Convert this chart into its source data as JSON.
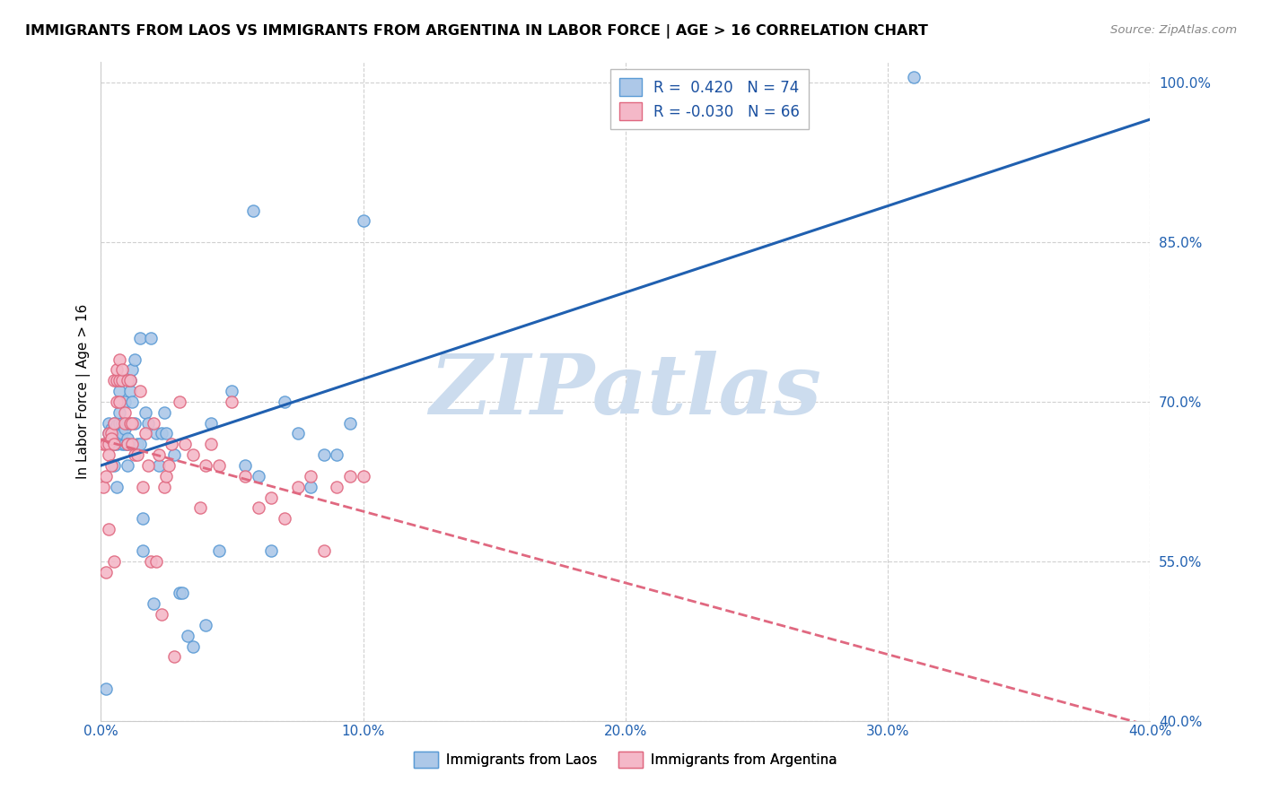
{
  "title": "IMMIGRANTS FROM LAOS VS IMMIGRANTS FROM ARGENTINA IN LABOR FORCE | AGE > 16 CORRELATION CHART",
  "source": "Source: ZipAtlas.com",
  "ylabel": "In Labor Force | Age > 16",
  "xlim": [
    0.0,
    40.0
  ],
  "ylim": [
    0.4,
    1.02
  ],
  "xtick_labels": [
    "0.0%",
    "10.0%",
    "20.0%",
    "30.0%",
    "40.0%"
  ],
  "xtick_vals": [
    0.0,
    10.0,
    20.0,
    30.0,
    40.0
  ],
  "ytick_labels": [
    "100.0%",
    "85.0%",
    "70.0%",
    "55.0%",
    "40.0%"
  ],
  "ytick_vals": [
    1.0,
    0.85,
    0.7,
    0.55,
    0.4
  ],
  "laos_color": "#adc8e8",
  "laos_edge_color": "#5b9bd5",
  "argentina_color": "#f4b8c8",
  "argentina_edge_color": "#e06880",
  "laos_R": 0.42,
  "laos_N": 74,
  "argentina_R": -0.03,
  "argentina_N": 66,
  "watermark": "ZIPatlas",
  "watermark_color": "#ccdcee",
  "trend_laos_color": "#2060b0",
  "trend_argentina_color": "#e06880",
  "laos_x": [
    0.2,
    0.3,
    0.3,
    0.3,
    0.4,
    0.4,
    0.4,
    0.4,
    0.5,
    0.5,
    0.5,
    0.5,
    0.6,
    0.6,
    0.6,
    0.6,
    0.6,
    0.7,
    0.7,
    0.7,
    0.7,
    0.7,
    0.8,
    0.8,
    0.8,
    0.8,
    0.9,
    0.9,
    0.9,
    1.0,
    1.0,
    1.0,
    1.0,
    1.1,
    1.1,
    1.2,
    1.2,
    1.3,
    1.3,
    1.4,
    1.5,
    1.5,
    1.6,
    1.6,
    1.7,
    1.8,
    1.9,
    2.0,
    2.1,
    2.2,
    2.3,
    2.4,
    2.5,
    2.8,
    3.0,
    3.1,
    3.3,
    3.5,
    4.0,
    4.2,
    4.5,
    5.0,
    5.5,
    5.8,
    6.0,
    6.5,
    7.0,
    7.5,
    8.0,
    8.5,
    9.0,
    9.5,
    10.0,
    31.0
  ],
  "laos_y": [
    0.43,
    0.67,
    0.68,
    0.66,
    0.665,
    0.672,
    0.66,
    0.675,
    0.68,
    0.675,
    0.66,
    0.64,
    0.665,
    0.67,
    0.678,
    0.66,
    0.62,
    0.67,
    0.665,
    0.68,
    0.69,
    0.71,
    0.72,
    0.68,
    0.66,
    0.67,
    0.675,
    0.7,
    0.66,
    0.68,
    0.665,
    0.66,
    0.64,
    0.71,
    0.72,
    0.7,
    0.73,
    0.68,
    0.74,
    0.66,
    0.76,
    0.66,
    0.59,
    0.56,
    0.69,
    0.68,
    0.76,
    0.51,
    0.67,
    0.64,
    0.67,
    0.69,
    0.67,
    0.65,
    0.52,
    0.52,
    0.48,
    0.47,
    0.49,
    0.68,
    0.56,
    0.71,
    0.64,
    0.88,
    0.63,
    0.56,
    0.7,
    0.67,
    0.62,
    0.65,
    0.65,
    0.68,
    0.87,
    1.005
  ],
  "argentina_x": [
    0.1,
    0.1,
    0.2,
    0.2,
    0.2,
    0.3,
    0.3,
    0.3,
    0.3,
    0.4,
    0.4,
    0.4,
    0.5,
    0.5,
    0.5,
    0.5,
    0.6,
    0.6,
    0.6,
    0.7,
    0.7,
    0.7,
    0.8,
    0.8,
    0.9,
    0.9,
    1.0,
    1.0,
    1.1,
    1.1,
    1.2,
    1.2,
    1.3,
    1.4,
    1.5,
    1.6,
    1.7,
    1.8,
    1.9,
    2.0,
    2.1,
    2.2,
    2.3,
    2.4,
    2.5,
    2.6,
    2.7,
    2.8,
    3.0,
    3.2,
    3.5,
    3.8,
    4.0,
    4.2,
    4.5,
    5.0,
    5.5,
    6.0,
    6.5,
    7.0,
    7.5,
    8.0,
    8.5,
    9.0,
    9.5,
    10.0
  ],
  "argentina_y": [
    0.66,
    0.62,
    0.66,
    0.63,
    0.54,
    0.67,
    0.66,
    0.65,
    0.58,
    0.67,
    0.665,
    0.64,
    0.68,
    0.72,
    0.66,
    0.55,
    0.72,
    0.73,
    0.7,
    0.72,
    0.74,
    0.7,
    0.72,
    0.73,
    0.69,
    0.68,
    0.72,
    0.66,
    0.68,
    0.72,
    0.66,
    0.68,
    0.65,
    0.65,
    0.71,
    0.62,
    0.67,
    0.64,
    0.55,
    0.68,
    0.55,
    0.65,
    0.5,
    0.62,
    0.63,
    0.64,
    0.66,
    0.46,
    0.7,
    0.66,
    0.65,
    0.6,
    0.64,
    0.66,
    0.64,
    0.7,
    0.63,
    0.6,
    0.61,
    0.59,
    0.62,
    0.63,
    0.56,
    0.62,
    0.63,
    0.63
  ],
  "legend_R1_text": "R =  0.420   N = 74",
  "legend_R2_text": "R = -0.030   N = 66",
  "bottom_legend_laos": "Immigrants from Laos",
  "bottom_legend_arg": "Immigrants from Argentina"
}
